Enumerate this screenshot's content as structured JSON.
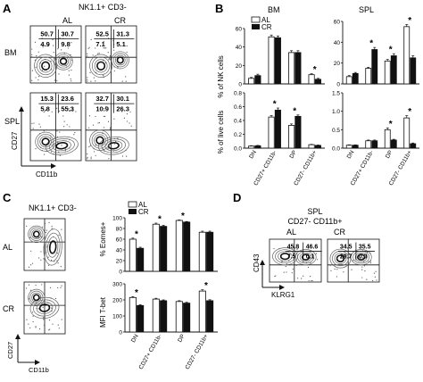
{
  "panels": {
    "a": {
      "letter": "A",
      "title": "NK1.1+ CD3-",
      "columns": [
        "AL",
        "CR"
      ],
      "rows": [
        "BM",
        "SPL"
      ],
      "x_axis": "CD11b",
      "y_axis": "CD27",
      "quadrants": {
        "bm_al": [
          "50.7",
          "30.7",
          "4.9",
          "9.8"
        ],
        "bm_cr": [
          "52.5",
          "31.3",
          "7.1",
          "5.1"
        ],
        "spl_al": [
          "15.3",
          "23.6",
          "5.8",
          "55.3"
        ],
        "spl_cr": [
          "32.7",
          "30.1",
          "10.9",
          "26.3"
        ]
      }
    },
    "b": {
      "letter": "B",
      "legend": [
        "AL",
        "CR"
      ],
      "col_titles": [
        "BM",
        "SPL"
      ],
      "ylabel_top": "% of NK cells",
      "ylabel_bottom": "% of live cells",
      "categories": [
        "DN",
        "CD27+ CD11b-",
        "DP",
        "CD27- CD11b+"
      ],
      "ticks": {
        "top_left": [
          "60",
          "40",
          "20",
          "0"
        ],
        "top_right": [
          "60",
          "40",
          "20",
          "0"
        ],
        "bottom_left": [
          "0.8",
          "0.6",
          "0.4",
          "0.2",
          "0.0"
        ],
        "bottom_right": [
          "1.5",
          "1.0",
          "0.5",
          "0.0"
        ]
      },
      "star": "*"
    },
    "c": {
      "letter": "C",
      "title": "NK1.1+ CD3-",
      "rows": [
        "AL",
        "CR"
      ],
      "x_axis": "CD11b",
      "y_axis": "CD27",
      "legend": [
        "AL",
        "CR"
      ],
      "ylabel_top": "% Eomes+",
      "ylabel_bottom": "MFI T-bet",
      "categories": [
        "DN",
        "CD27+ CD11b-",
        "DP",
        "CD27- CD11b+"
      ],
      "ticks_top": [
        "100",
        "80",
        "60",
        "40",
        "20",
        "0"
      ],
      "ticks_bottom": [
        "300",
        "200",
        "100",
        "0"
      ],
      "star": "*"
    },
    "d": {
      "letter": "D",
      "title": "SPL",
      "subtitle": "CD27- CD11b+",
      "columns": [
        "AL",
        "CR"
      ],
      "x_axis": "KLRG1",
      "y_axis": "CD43",
      "quadrants": {
        "al": [
          "45.8",
          "46.6",
          "7.5",
          "0.1"
        ],
        "cr": [
          "34.5",
          "35.5",
          "29.7",
          "0.3"
        ]
      }
    }
  },
  "chart_data": [
    {
      "type": "bar",
      "panel": "B",
      "title": "BM",
      "ylabel": "% of NK cells",
      "ylim": [
        0,
        60
      ],
      "categories": [
        "DN",
        "CD27+ CD11b-",
        "DP",
        "CD27- CD11b+"
      ],
      "series": [
        {
          "name": "AL",
          "values": [
            6,
            51,
            34,
            10
          ],
          "errors": [
            1,
            2,
            2,
            1
          ]
        },
        {
          "name": "CR",
          "values": [
            9,
            50,
            34,
            5
          ],
          "errors": [
            1.5,
            2,
            2,
            1
          ]
        }
      ],
      "significant": [
        3
      ]
    },
    {
      "type": "bar",
      "panel": "B",
      "title": "SPL",
      "ylabel": "% of NK cells",
      "ylim": [
        0,
        60
      ],
      "categories": [
        "DN",
        "CD27+ CD11b-",
        "DP",
        "CD27- CD11b+"
      ],
      "series": [
        {
          "name": "AL",
          "values": [
            7,
            15,
            22,
            55
          ],
          "errors": [
            1,
            1,
            1.5,
            2
          ]
        },
        {
          "name": "CR",
          "values": [
            10,
            33,
            27,
            25
          ],
          "errors": [
            1,
            2,
            2,
            2
          ]
        }
      ],
      "significant": [
        1,
        2,
        3
      ]
    },
    {
      "type": "bar",
      "panel": "B",
      "title": "BM",
      "ylabel": "% of live cells",
      "ylim": [
        0,
        0.8
      ],
      "categories": [
        "DN",
        "CD27+ CD11b-",
        "DP",
        "CD27- CD11b+"
      ],
      "series": [
        {
          "name": "AL",
          "values": [
            0.03,
            0.45,
            0.33,
            0.05
          ],
          "errors": [
            0.005,
            0.02,
            0.02,
            0.005
          ]
        },
        {
          "name": "CR",
          "values": [
            0.035,
            0.55,
            0.46,
            0.04
          ],
          "errors": [
            0.005,
            0.03,
            0.02,
            0.005
          ]
        }
      ],
      "significant": [
        1,
        2
      ]
    },
    {
      "type": "bar",
      "panel": "B",
      "title": "SPL",
      "ylabel": "% of live cells",
      "ylim": [
        0,
        1.5
      ],
      "categories": [
        "DN",
        "CD27+ CD11b-",
        "DP",
        "CD27- CD11b+"
      ],
      "series": [
        {
          "name": "AL",
          "values": [
            0.08,
            0.2,
            0.5,
            0.82
          ],
          "errors": [
            0.01,
            0.02,
            0.05,
            0.06
          ]
        },
        {
          "name": "CR",
          "values": [
            0.08,
            0.2,
            0.22,
            0.12
          ],
          "errors": [
            0.01,
            0.02,
            0.02,
            0.02
          ]
        }
      ],
      "significant": [
        2,
        3
      ]
    },
    {
      "type": "bar",
      "panel": "C",
      "ylabel": "% Eomes+",
      "ylim": [
        0,
        100
      ],
      "categories": [
        "DN",
        "CD27+ CD11b-",
        "DP",
        "CD27- CD11b+"
      ],
      "series": [
        {
          "name": "AL",
          "values": [
            60,
            88,
            95,
            73
          ],
          "errors": [
            2,
            2,
            1,
            2
          ]
        },
        {
          "name": "CR",
          "values": [
            43,
            84,
            92,
            73
          ],
          "errors": [
            2,
            2,
            1,
            2
          ]
        }
      ],
      "significant": [
        0,
        1,
        2
      ]
    },
    {
      "type": "bar",
      "panel": "C",
      "ylabel": "MFI T-bet",
      "ylim": [
        0,
        300
      ],
      "categories": [
        "DN",
        "CD27+ CD11b-",
        "DP",
        "CD27- CD11b+"
      ],
      "series": [
        {
          "name": "AL",
          "values": [
            215,
            205,
            190,
            255
          ],
          "errors": [
            5,
            5,
            5,
            8
          ]
        },
        {
          "name": "CR",
          "values": [
            165,
            195,
            180,
            195
          ],
          "errors": [
            5,
            5,
            5,
            6
          ]
        }
      ],
      "significant": [
        0,
        3
      ]
    }
  ]
}
